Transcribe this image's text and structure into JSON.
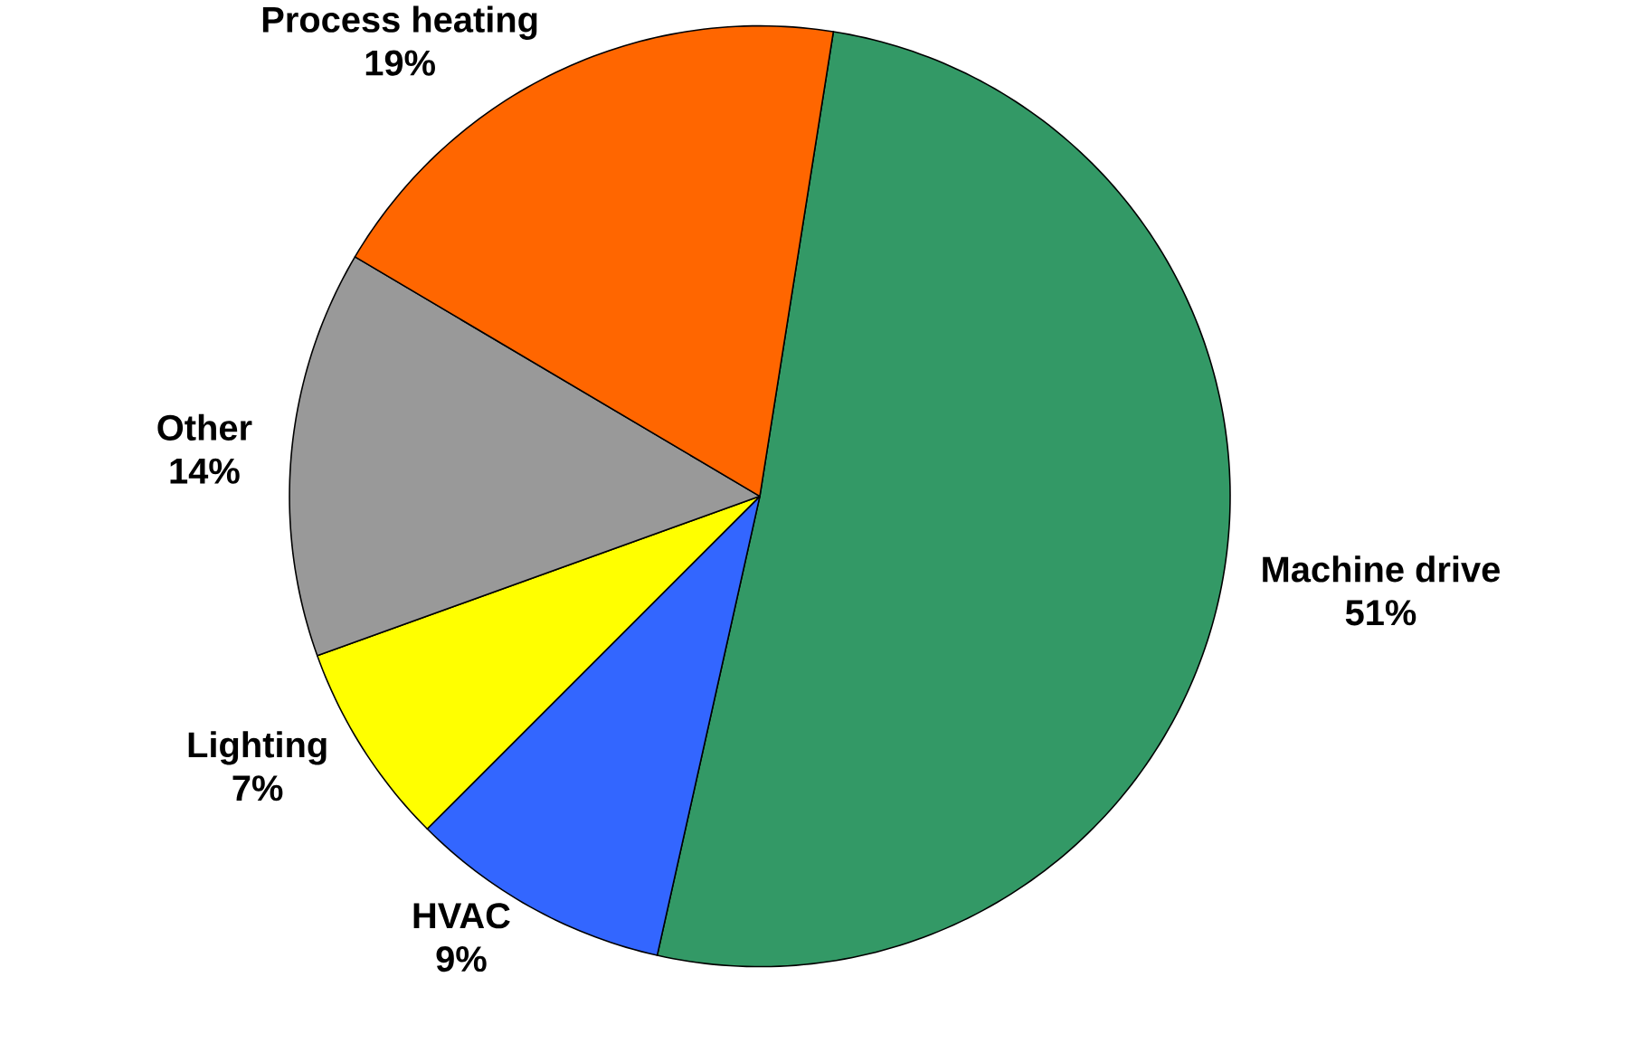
{
  "chart_data": {
    "type": "pie",
    "categories": [
      "Machine drive",
      "HVAC",
      "Lighting",
      "Other",
      "Process heating"
    ],
    "values": [
      51,
      9,
      7,
      14,
      19
    ],
    "value_labels": [
      "51%",
      "9%",
      "7%",
      "14%",
      "19%"
    ],
    "colors": [
      "#339966",
      "#3366ff",
      "#ffff00",
      "#999999",
      "#ff6600"
    ]
  }
}
